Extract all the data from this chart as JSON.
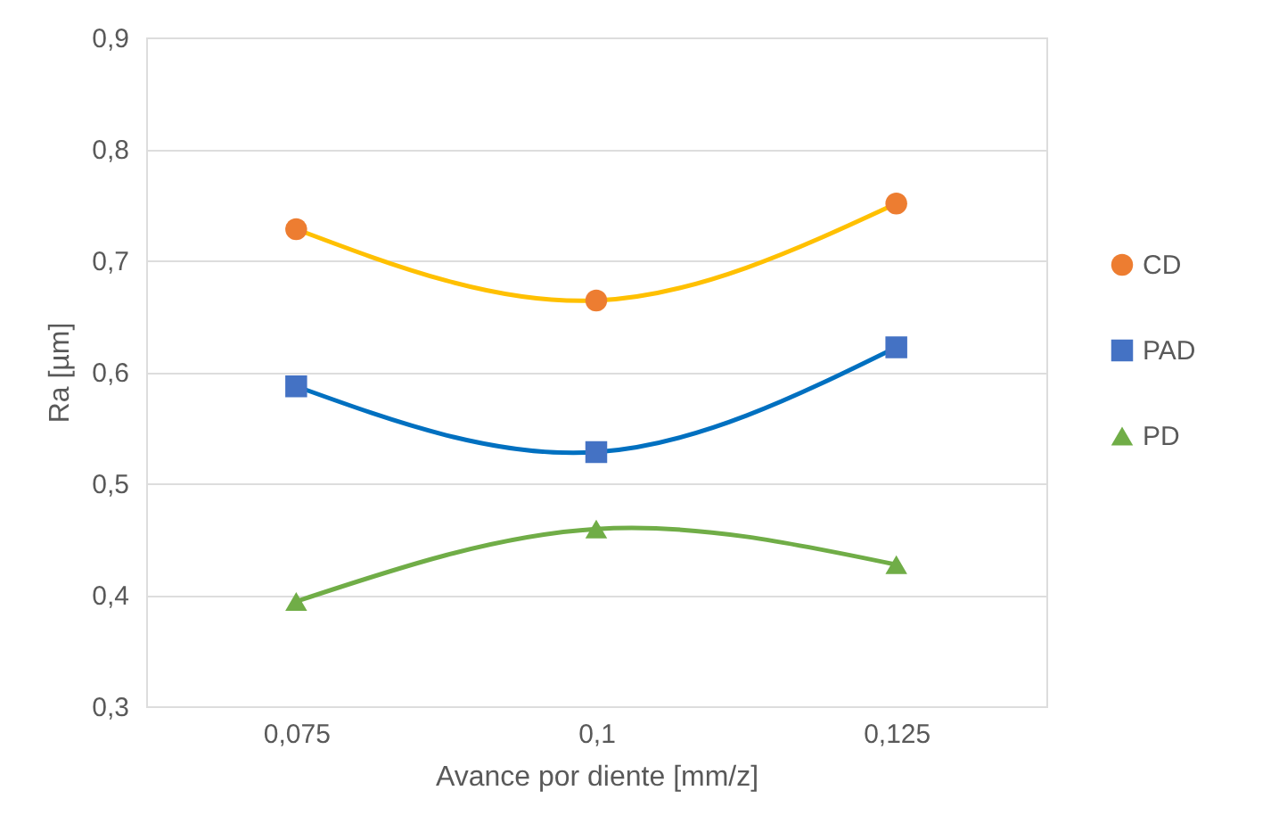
{
  "chart_data": {
    "type": "scatter",
    "xlabel": "Avance por diente [mm/z]",
    "ylabel": "Ra [µm]",
    "categories": [
      "0,075",
      "0,1",
      "0,125"
    ],
    "series": [
      {
        "type": "line",
        "color": "#ffc000",
        "line_style": "solid",
        "values": [
          0.728,
          0.664,
          0.751
        ]
      },
      {
        "type": "line",
        "color": "#0070c0",
        "line_style": "solid",
        "values": [
          0.587,
          0.528,
          0.622
        ]
      },
      {
        "type": "line",
        "color": "#70ad47",
        "line_style": "solid",
        "values": [
          0.394,
          0.459,
          0.427
        ]
      },
      {
        "name": "CD",
        "color": "#ed7d31",
        "marker": "circle",
        "values": [
          0.728,
          0.664,
          0.751
        ]
      },
      {
        "name": "PAD",
        "color": "#4472c4",
        "marker": "square",
        "values": [
          0.587,
          0.528,
          0.622
        ]
      },
      {
        "name": "PD",
        "color": "#70ad47",
        "marker": "triangle",
        "values": [
          0.394,
          0.459,
          0.427
        ]
      }
    ],
    "ylim": [
      0.3,
      0.9
    ],
    "yticks": [
      {
        "value": 0.3,
        "label": "0,3"
      },
      {
        "value": 0.4,
        "label": "0,4"
      },
      {
        "value": 0.5,
        "label": "0,5"
      },
      {
        "value": 0.6,
        "label": "0,6"
      },
      {
        "value": 0.7,
        "label": "0,7"
      },
      {
        "value": 0.8,
        "label": "0,8"
      },
      {
        "value": 0.9,
        "label": "0,9"
      }
    ],
    "grid": "y",
    "legend": "right"
  }
}
